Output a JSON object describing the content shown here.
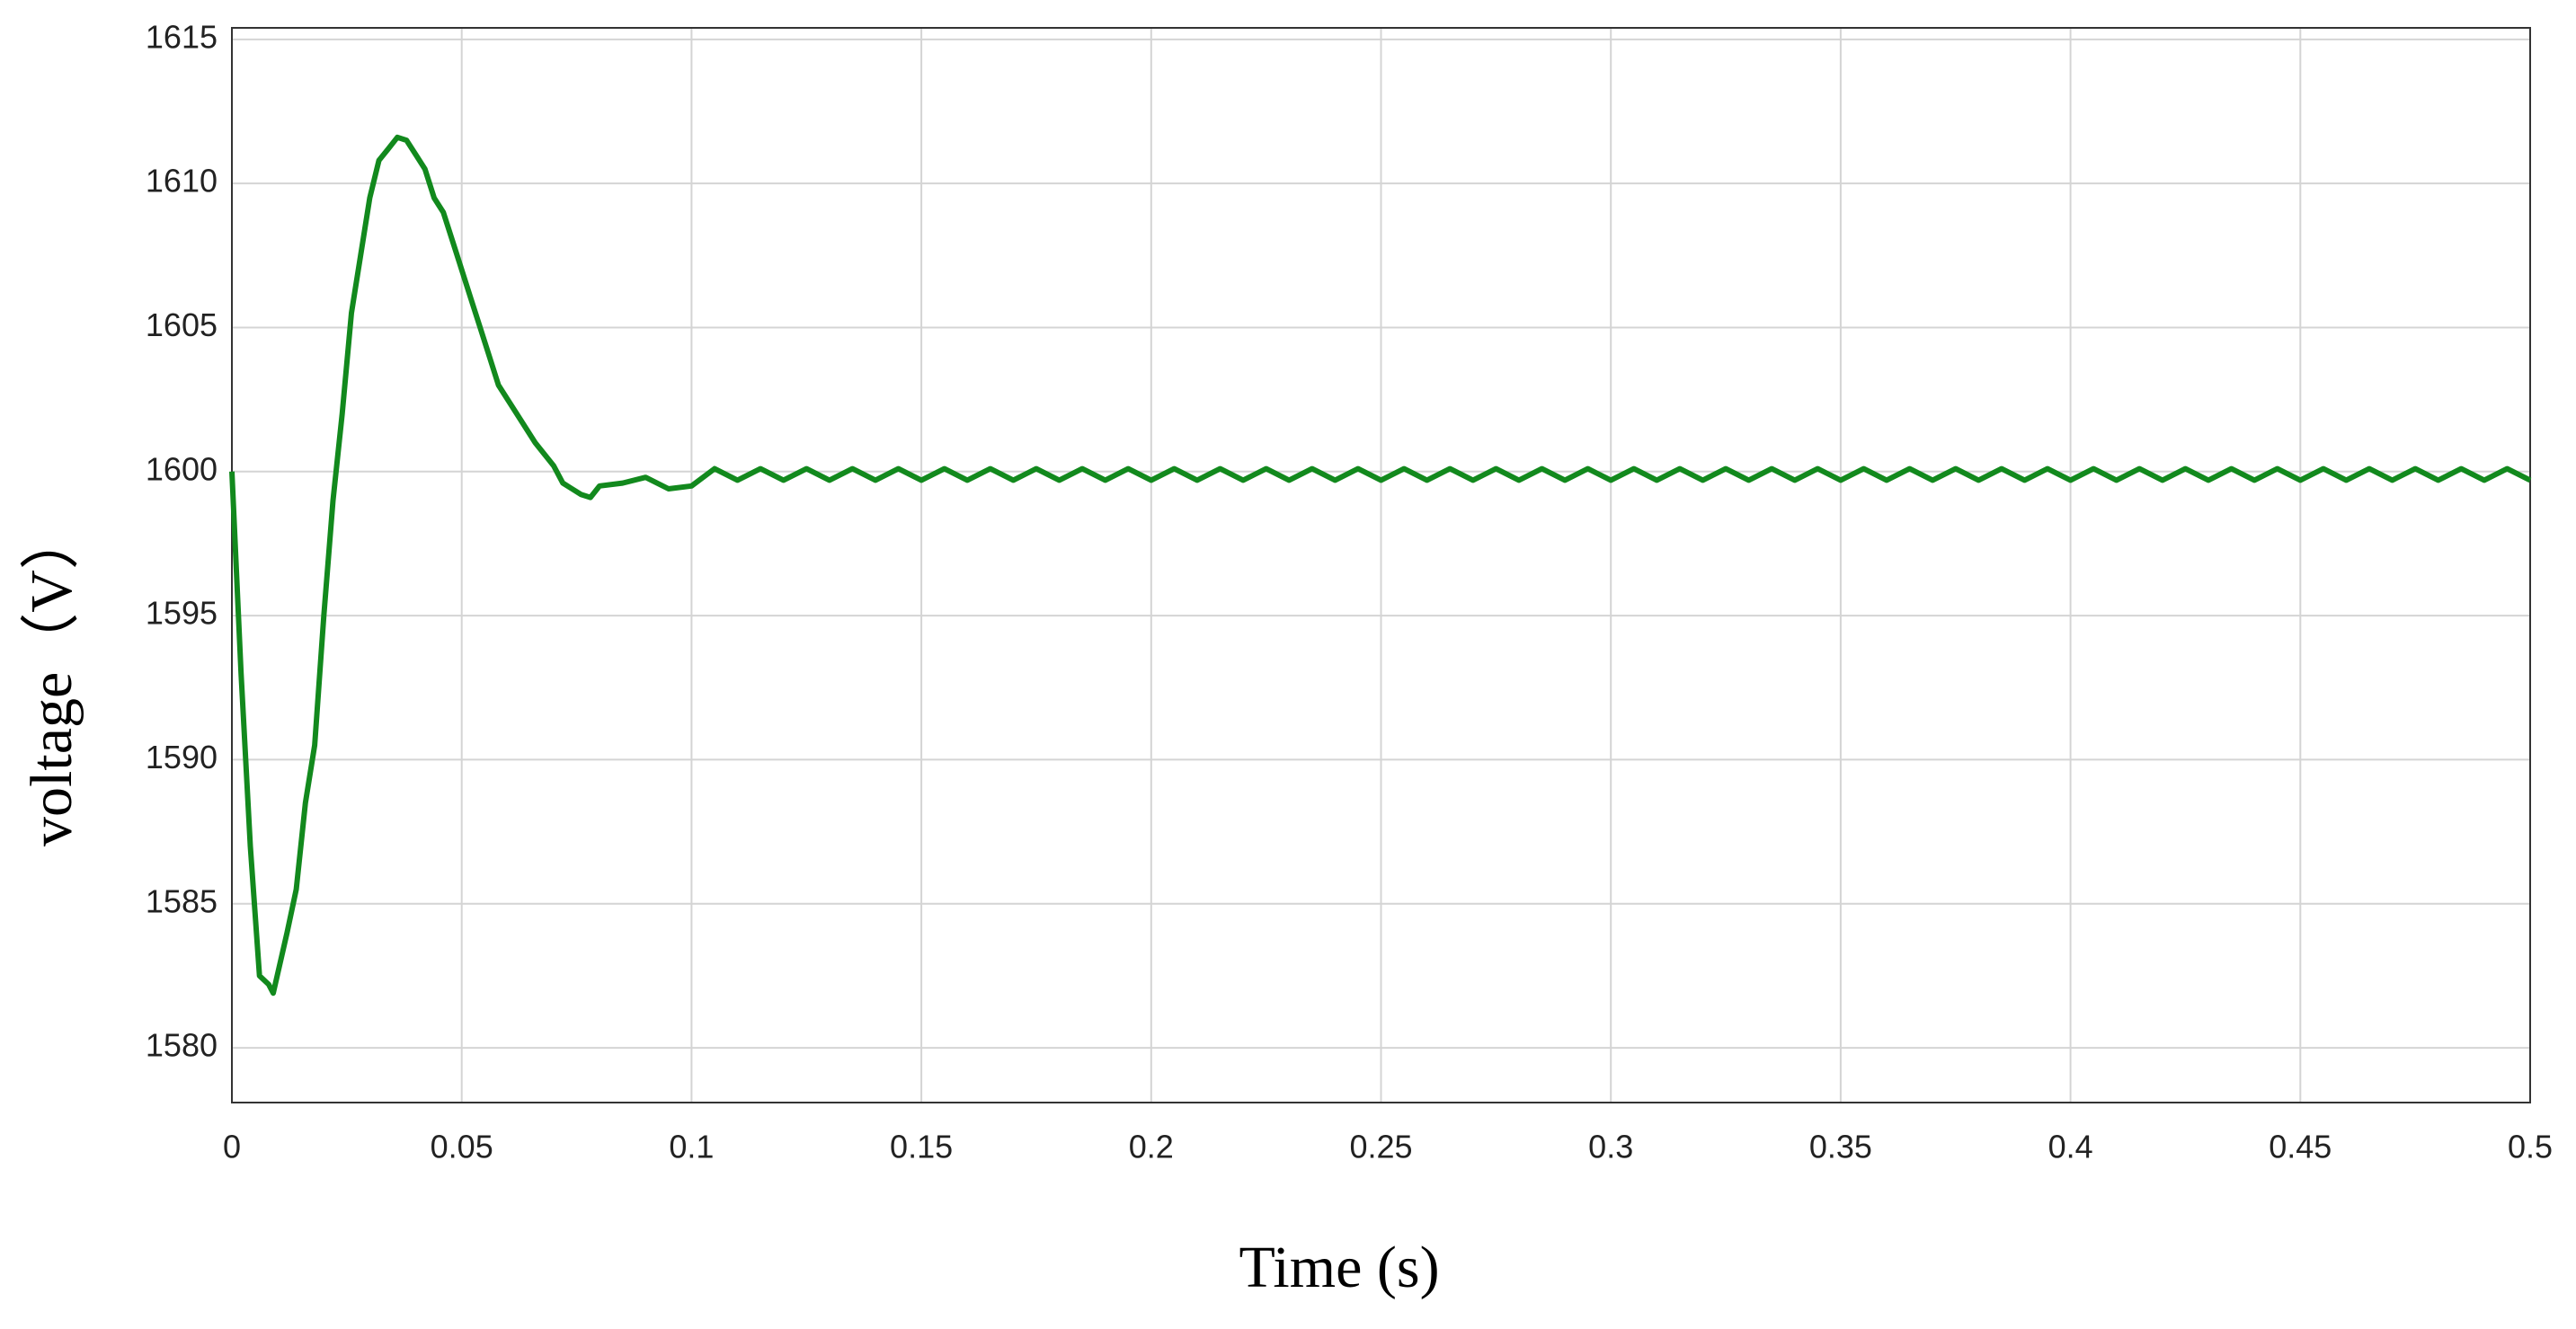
{
  "chart_data": {
    "type": "line",
    "x_label": "Time (s)",
    "y_label": "voltage（V）",
    "x": [
      0,
      0.002,
      0.004,
      0.006,
      0.008,
      0.009,
      0.012,
      0.014,
      0.016,
      0.018,
      0.02,
      0.022,
      0.024,
      0.026,
      0.028,
      0.03,
      0.032,
      0.034,
      0.036,
      0.038,
      0.04,
      0.042,
      0.044,
      0.046,
      0.048,
      0.05,
      0.052,
      0.054,
      0.056,
      0.058,
      0.06,
      0.062,
      0.064,
      0.066,
      0.068,
      0.07,
      0.072,
      0.074,
      0.076,
      0.078,
      0.08,
      0.085,
      0.09,
      0.095,
      0.1,
      0.105,
      0.11,
      0.115,
      0.12,
      0.125,
      0.13,
      0.135,
      0.14,
      0.145,
      0.15,
      0.155,
      0.16,
      0.165,
      0.17,
      0.175,
      0.18,
      0.185,
      0.19,
      0.195,
      0.2,
      0.205,
      0.21,
      0.215,
      0.22,
      0.225,
      0.23,
      0.235,
      0.24,
      0.245,
      0.25,
      0.255,
      0.26,
      0.265,
      0.27,
      0.275,
      0.28,
      0.285,
      0.29,
      0.295,
      0.3,
      0.305,
      0.31,
      0.315,
      0.32,
      0.325,
      0.33,
      0.335,
      0.34,
      0.345,
      0.35,
      0.355,
      0.36,
      0.365,
      0.37,
      0.375,
      0.38,
      0.385,
      0.39,
      0.395,
      0.4,
      0.405,
      0.41,
      0.415,
      0.42,
      0.425,
      0.43,
      0.435,
      0.44,
      0.445,
      0.45,
      0.455,
      0.46,
      0.465,
      0.47,
      0.475,
      0.48,
      0.485,
      0.49,
      0.495,
      0.5
    ],
    "values": [
      1600,
      1593,
      1587,
      1582.5,
      1582.2,
      1581.9,
      1584,
      1585.5,
      1588.5,
      1590.5,
      1595,
      1599,
      1602,
      1605.5,
      1607.5,
      1609.5,
      1610.8,
      1611.2,
      1611.6,
      1611.5,
      1611,
      1610.5,
      1609.5,
      1609,
      1608,
      1607,
      1606,
      1605,
      1604,
      1603,
      1602.5,
      1602,
      1601.5,
      1601,
      1600.6,
      1600.2,
      1599.6,
      1599.4,
      1599.2,
      1599.1,
      1599.5,
      1599.6,
      1599.8,
      1599.4,
      1599.5,
      1600.1,
      1599.7,
      1600.1,
      1599.7,
      1600.1,
      1599.7,
      1600.1,
      1599.7,
      1600.1,
      1599.7,
      1600.1,
      1599.7,
      1600.1,
      1599.7,
      1600.1,
      1599.7,
      1600.1,
      1599.7,
      1600.1,
      1599.7,
      1600.1,
      1599.7,
      1600.1,
      1599.7,
      1600.1,
      1599.7,
      1600.1,
      1599.7,
      1600.1,
      1599.7,
      1600.1,
      1599.7,
      1600.1,
      1599.7,
      1600.1,
      1599.7,
      1600.1,
      1599.7,
      1600.1,
      1599.7,
      1600.1,
      1599.7,
      1600.1,
      1599.7,
      1600.1,
      1599.7,
      1600.1,
      1599.7,
      1600.1,
      1599.7,
      1600.1,
      1599.7,
      1600.1,
      1599.7,
      1600.1,
      1599.7,
      1600.1,
      1599.7,
      1600.1,
      1599.7,
      1600.1,
      1599.7,
      1600.1,
      1599.7,
      1600.1,
      1599.7,
      1600.1,
      1599.7,
      1600.1,
      1599.7,
      1600.1,
      1599.7,
      1600.1,
      1599.7,
      1600.1,
      1599.7,
      1600.1,
      1599.7,
      1600.1,
      1599.7
    ],
    "color": "#12891d",
    "xlim": [
      0,
      0.5
    ],
    "xticks": [
      0,
      0.05,
      0.1,
      0.15,
      0.2,
      0.25,
      0.3,
      0.35,
      0.4,
      0.45,
      0.5
    ],
    "ylim": [
      1578.1,
      1615.4
    ],
    "yticks": [
      1580,
      1585,
      1590,
      1595,
      1600,
      1605,
      1610,
      1615
    ],
    "grid": true
  }
}
